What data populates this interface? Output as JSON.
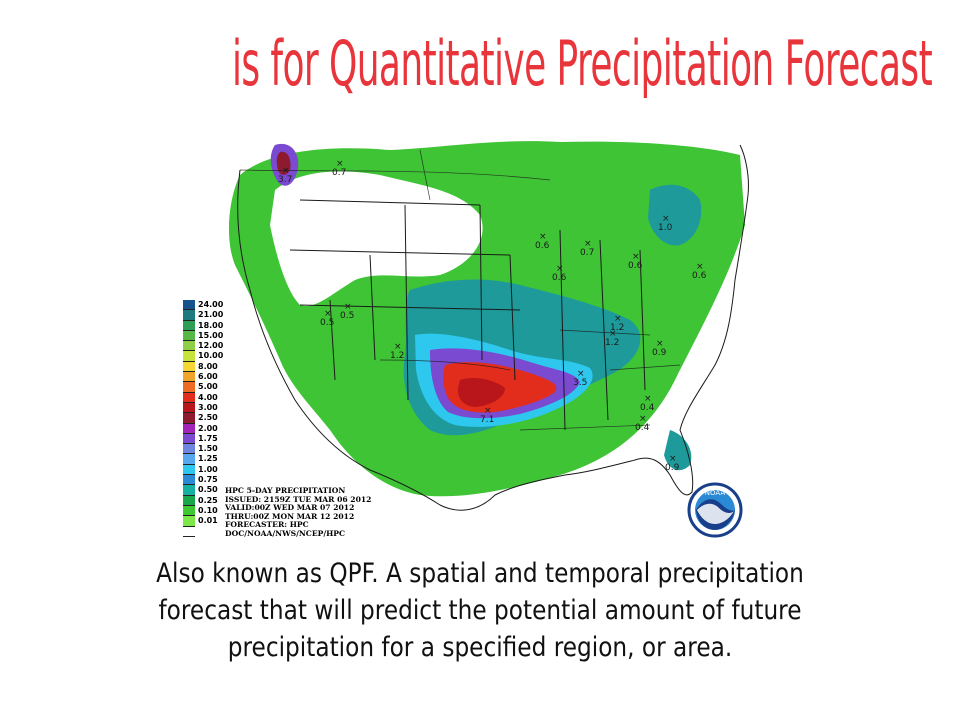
{
  "slide": {
    "title": "is for Quantitative  Precipitation Forecast",
    "caption": "Also known as QPF. A spatial and temporal precipitation forecast that will predict the potential amount of future precipitation for a specified region, or area."
  },
  "map": {
    "legend": [
      {
        "value": "24.00",
        "color": "#16538c"
      },
      {
        "value": "21.00",
        "color": "#1e7a7e"
      },
      {
        "value": "18.00",
        "color": "#2e9d56"
      },
      {
        "value": "15.00",
        "color": "#57b848"
      },
      {
        "value": "12.00",
        "color": "#8fcf45"
      },
      {
        "value": "10.00",
        "color": "#c7e43d"
      },
      {
        "value": "8.00",
        "color": "#f4d635"
      },
      {
        "value": "6.00",
        "color": "#f2a52b"
      },
      {
        "value": "5.00",
        "color": "#ef6a22"
      },
      {
        "value": "4.00",
        "color": "#e22c1c"
      },
      {
        "value": "3.00",
        "color": "#b8161b"
      },
      {
        "value": "2.50",
        "color": "#8d1a2e"
      },
      {
        "value": "2.00",
        "color": "#a224b8"
      },
      {
        "value": "1.75",
        "color": "#7a4ad0"
      },
      {
        "value": "1.50",
        "color": "#6f86e0"
      },
      {
        "value": "1.25",
        "color": "#58a8f0"
      },
      {
        "value": "1.00",
        "color": "#2ec8ef"
      },
      {
        "value": "0.75",
        "color": "#2b8ad6"
      },
      {
        "value": "0.50",
        "color": "#15b0a0"
      },
      {
        "value": "0.25",
        "color": "#1aa64a"
      },
      {
        "value": "0.10",
        "color": "#3ec831"
      },
      {
        "value": "0.01",
        "color": "#7ee84a"
      },
      {
        "value": "",
        "color": "#ffffff"
      }
    ],
    "info_lines": [
      "HPC 5-DAY PRECIPITATION",
      "ISSUED: 2159Z TUE MAR 06 2012",
      "VALID:00Z WED MAR 07 2012",
      "THRU:00Z MON MAR 12 2012",
      "FORECASTER: HPC",
      "DOC/NOAA/NWS/NCEP/HPC"
    ],
    "maxima": [
      "3.7",
      "0.7",
      "0.5",
      "0.5",
      "1.2",
      "7.1",
      "3.5",
      "1.2",
      "1.2",
      "0.9",
      "0.4",
      "0.4",
      "0.9",
      "0.6",
      "0.6",
      "0.7",
      "0.6",
      "1.0",
      "0.6"
    ],
    "logo_text": "NOAA"
  }
}
